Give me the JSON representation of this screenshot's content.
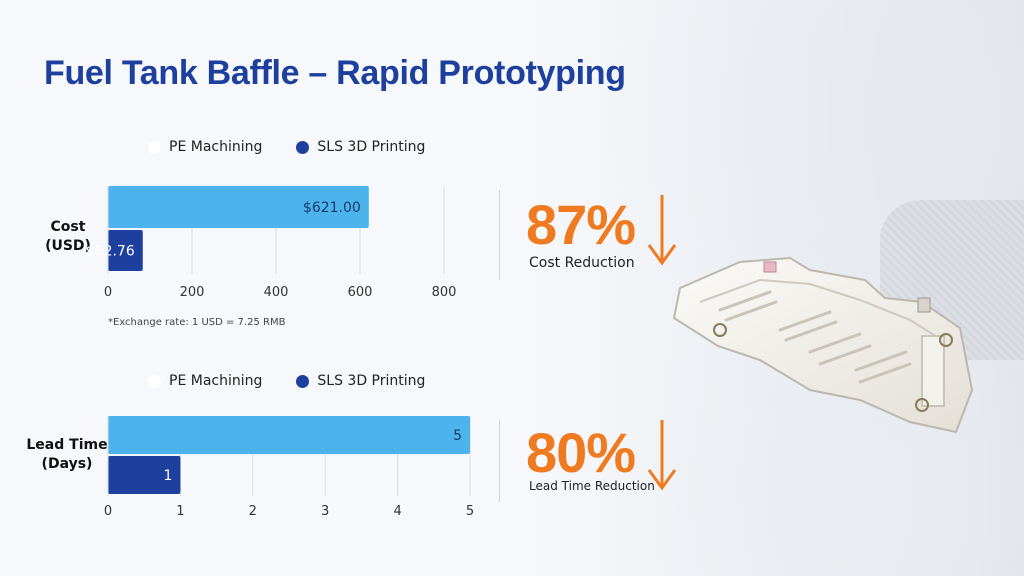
{
  "title": "Fuel Tank Baffle – Rapid Prototyping",
  "colors": {
    "pe": "#4db3ec",
    "sls": "#1d3f9e",
    "accent": "#f07a20",
    "title": "#1d3f9e"
  },
  "chart_data": [
    {
      "type": "bar",
      "orientation": "horizontal",
      "category_label": "Cost\n(USD)",
      "series": [
        {
          "name": "PE Machining",
          "values": [
            621.0
          ],
          "value_labels": [
            "$621.00"
          ]
        },
        {
          "name": "SLS 3D Printing",
          "values": [
            82.76
          ],
          "value_labels": [
            "$82.76"
          ]
        }
      ],
      "xlim": [
        0,
        850
      ],
      "x_ticks": [
        0,
        200,
        400,
        600,
        800
      ],
      "grid": true,
      "legend_position": "top",
      "note": "*Exchange rate: 1 USD = 7.25 RMB"
    },
    {
      "type": "bar",
      "orientation": "horizontal",
      "category_label": "Lead Time\n(Days)",
      "series": [
        {
          "name": "PE Machining",
          "values": [
            5
          ],
          "value_labels": [
            "5"
          ]
        },
        {
          "name": "SLS 3D Printing",
          "values": [
            1
          ],
          "value_labels": [
            "1"
          ]
        }
      ],
      "xlim": [
        0,
        5
      ],
      "x_ticks": [
        0,
        1,
        2,
        3,
        4,
        5
      ],
      "grid": true,
      "legend_position": "top"
    }
  ],
  "stats": [
    {
      "value": "87%",
      "label": "Cost Reduction",
      "icon": "arrow-down-icon"
    },
    {
      "value": "80%",
      "label": "Lead Time Reduction",
      "icon": "arrow-down-icon"
    }
  ]
}
